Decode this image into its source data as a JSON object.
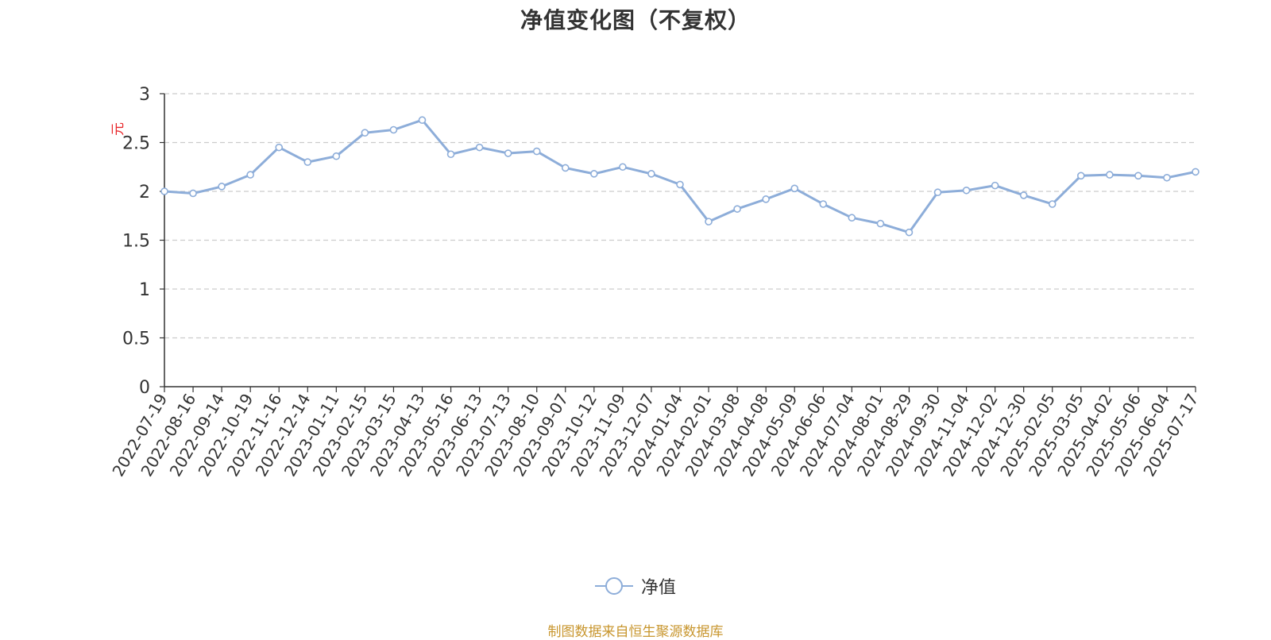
{
  "title": "净值变化图（不复权）",
  "y_unit": "元",
  "source_note": "制图数据来自恒生聚源数据库",
  "colors": {
    "series": "#8dadd9",
    "grid": "#cccccc",
    "axis": "#333333",
    "unit": "#e8262a",
    "source": "#c8962e"
  },
  "chart_data": {
    "type": "line",
    "title": "净值变化图（不复权）",
    "ylabel": "元",
    "ylim": [
      0,
      3
    ],
    "yticks": [
      "0",
      "0.5",
      "1",
      "1.5",
      "2",
      "2.5",
      "3"
    ],
    "grid": "horizontal-dashed",
    "legend_position": "bottom-center",
    "categories": [
      "2022-07-19",
      "2022-08-16",
      "2022-09-14",
      "2022-10-19",
      "2022-11-16",
      "2022-12-14",
      "2023-01-11",
      "2023-02-15",
      "2023-03-15",
      "2023-04-13",
      "2023-05-16",
      "2023-06-13",
      "2023-07-13",
      "2023-08-10",
      "2023-09-07",
      "2023-10-12",
      "2023-11-09",
      "2023-12-07",
      "2024-01-04",
      "2024-02-01",
      "2024-03-08",
      "2024-04-08",
      "2024-05-09",
      "2024-06-06",
      "2024-07-04",
      "2024-08-01",
      "2024-08-29",
      "2024-09-30",
      "2024-11-04",
      "2024-12-02",
      "2024-12-30",
      "2025-02-05",
      "2025-03-05",
      "2025-04-02",
      "2025-05-06",
      "2025-06-04",
      "2025-07-17"
    ],
    "series": [
      {
        "name": "净值",
        "values": [
          2.0,
          1.98,
          2.05,
          2.17,
          2.45,
          2.3,
          2.36,
          2.6,
          2.63,
          2.73,
          2.38,
          2.45,
          2.39,
          2.41,
          2.24,
          2.18,
          2.25,
          2.18,
          2.07,
          1.69,
          1.82,
          1.92,
          2.03,
          1.87,
          1.73,
          1.67,
          1.58,
          1.99,
          2.01,
          2.06,
          1.96,
          1.87,
          2.16,
          2.17,
          2.16,
          2.14,
          2.2
        ]
      }
    ]
  }
}
